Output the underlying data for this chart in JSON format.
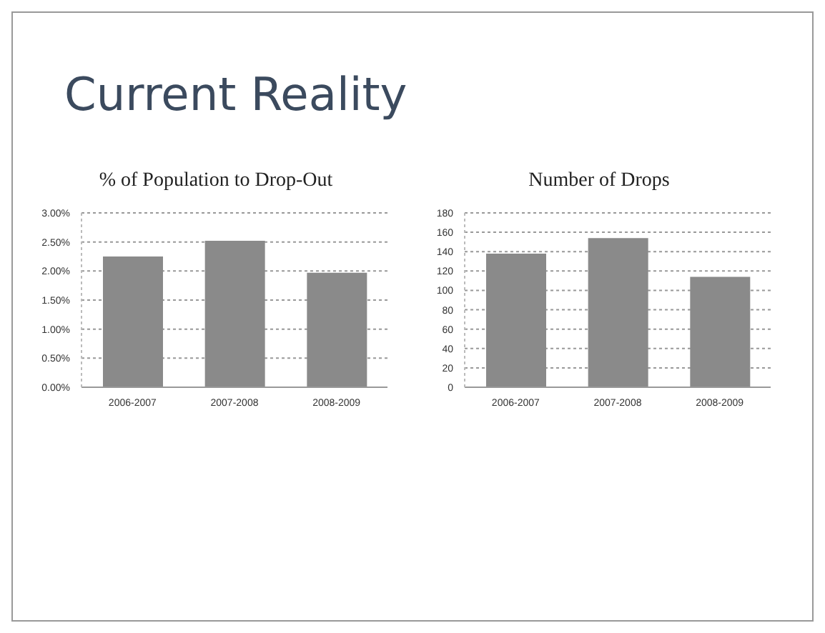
{
  "chart_data": [
    {
      "type": "bar",
      "title": "% of Population to Drop-Out",
      "annotations": [
        "Current Reality"
      ],
      "categories": [
        "2006-2007",
        "2007-2008",
        "2008-2009"
      ],
      "values": [
        2.25,
        2.52,
        1.97
      ],
      "color": "#8a8a8a",
      "ylim": [
        0,
        3
      ],
      "yticks": [
        {
          "value": 0,
          "label": "0.00%"
        },
        {
          "value": 0.5,
          "label": "0.50%"
        },
        {
          "value": 1,
          "label": "1.00%"
        },
        {
          "value": 1.5,
          "label": "1.50%"
        },
        {
          "value": 2,
          "label": "2.00%"
        },
        {
          "value": 2.5,
          "label": "2.50%"
        },
        {
          "value": 3,
          "label": "3.00%"
        }
      ],
      "grid": "y"
    },
    {
      "type": "bar",
      "title": "Number of Drops",
      "categories": [
        "2006-2007",
        "2007-2008",
        "2008-2009"
      ],
      "values": [
        138,
        154,
        114
      ],
      "color": "#8a8a8a",
      "ylim": [
        0,
        180
      ],
      "yticks": [
        0,
        20,
        40,
        60,
        80,
        100,
        120,
        140,
        160,
        180
      ],
      "grid": "y"
    }
  ]
}
